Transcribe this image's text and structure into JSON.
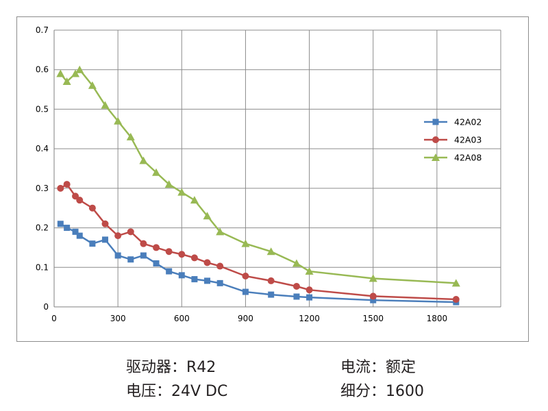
{
  "chart_data": {
    "type": "line",
    "title": "",
    "xlabel": "",
    "ylabel": "",
    "xlim": [
      0,
      2100
    ],
    "ylim": [
      0,
      0.7
    ],
    "x_ticks": [
      "0",
      "300",
      "600",
      "900",
      "1200",
      "1500",
      "1800"
    ],
    "y_ticks": [
      "0",
      "0.1",
      "0.2",
      "0.3",
      "0.4",
      "0.5",
      "0.6",
      "0.7"
    ],
    "grid": true,
    "legend_position": "right",
    "series": [
      {
        "name": "42A02",
        "color": "#4a7ebb",
        "marker": "square",
        "x": [
          30,
          60,
          100,
          120,
          180,
          240,
          300,
          360,
          420,
          480,
          540,
          600,
          660,
          720,
          780,
          900,
          1020,
          1140,
          1200,
          1500,
          1890
        ],
        "y": [
          0.21,
          0.2,
          0.19,
          0.18,
          0.16,
          0.17,
          0.13,
          0.12,
          0.13,
          0.11,
          0.09,
          0.08,
          0.07,
          0.066,
          0.06,
          0.038,
          0.031,
          0.026,
          0.024,
          0.017,
          0.012
        ]
      },
      {
        "name": "42A03",
        "color": "#be4b48",
        "marker": "circle",
        "x": [
          30,
          60,
          100,
          120,
          180,
          240,
          300,
          360,
          420,
          480,
          540,
          600,
          660,
          720,
          780,
          900,
          1020,
          1140,
          1200,
          1500,
          1890
        ],
        "y": [
          0.3,
          0.31,
          0.28,
          0.27,
          0.25,
          0.21,
          0.18,
          0.19,
          0.16,
          0.15,
          0.14,
          0.133,
          0.124,
          0.112,
          0.103,
          0.078,
          0.066,
          0.052,
          0.043,
          0.027,
          0.019
        ]
      },
      {
        "name": "42A08",
        "color": "#98b954",
        "marker": "triangle",
        "x": [
          30,
          60,
          100,
          120,
          180,
          240,
          300,
          360,
          420,
          480,
          540,
          600,
          660,
          720,
          780,
          900,
          1020,
          1140,
          1200,
          1500,
          1890
        ],
        "y": [
          0.59,
          0.57,
          0.59,
          0.6,
          0.56,
          0.51,
          0.47,
          0.43,
          0.37,
          0.34,
          0.31,
          0.29,
          0.27,
          0.23,
          0.19,
          0.16,
          0.14,
          0.11,
          0.09,
          0.072,
          0.06
        ]
      }
    ]
  },
  "captions": {
    "driver": "驱动器：R42",
    "voltage": "电压：24V DC",
    "current": "电流：额定",
    "microstep": "细分：1600"
  }
}
